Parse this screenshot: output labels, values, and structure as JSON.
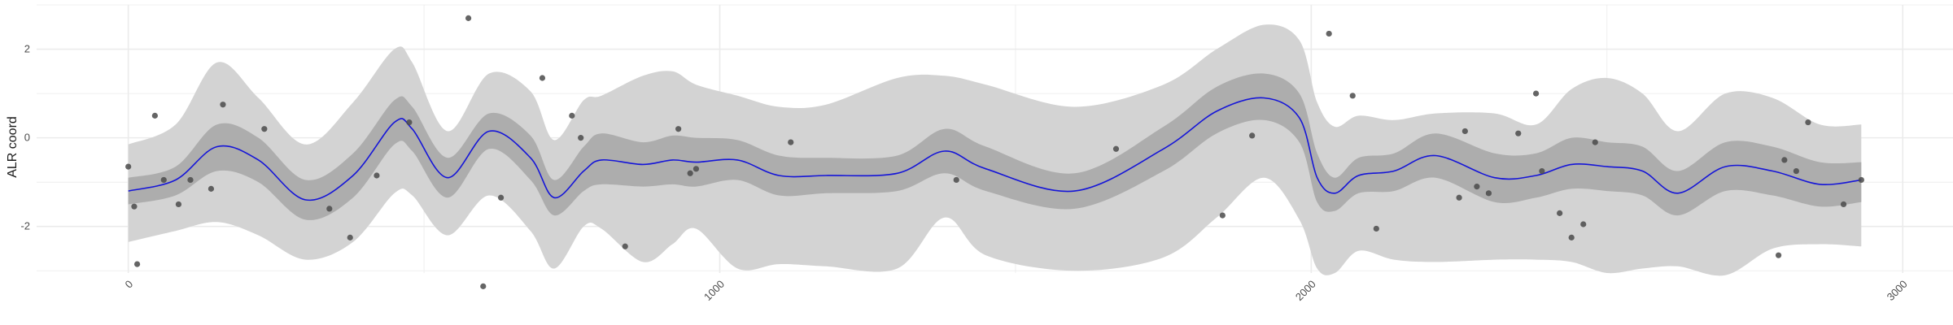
{
  "chart_data": {
    "type": "line",
    "title": "",
    "xlabel": "",
    "ylabel": "ALR coord",
    "xlim": [
      -155,
      3085
    ],
    "ylim": [
      -3.05,
      3.0
    ],
    "x_ticks": [
      {
        "value": 0,
        "label": "0"
      },
      {
        "value": 1000,
        "label": "1000"
      },
      {
        "value": 2000,
        "label": "2000"
      },
      {
        "value": 3000,
        "label": "3000"
      }
    ],
    "x_minor_ticks": [
      500,
      1500,
      2500
    ],
    "y_ticks": [
      {
        "value": 2,
        "label": "2"
      },
      {
        "value": 0,
        "label": "0"
      },
      {
        "value": -2,
        "label": "-2"
      }
    ],
    "y_minor_ticks": [
      3,
      1,
      -1,
      -3
    ],
    "grid": true,
    "colors": {
      "line": "#1515d8",
      "inner_band": "#adadad",
      "outer_band": "#d3d3d3",
      "points": "#4a4a4a",
      "grid": "#ebebeb"
    },
    "series": [
      {
        "role": "mean",
        "x": [
          0,
          80,
          150,
          220,
          300,
          380,
          450,
          480,
          540,
          610,
          680,
          720,
          770,
          800,
          870,
          920,
          960,
          1030,
          1100,
          1180,
          1300,
          1380,
          1450,
          1600,
          1750,
          1840,
          1920,
          1980,
          2010,
          2040,
          2080,
          2140,
          2210,
          2310,
          2380,
          2440,
          2500,
          2560,
          2620,
          2700,
          2780,
          2860,
          2930
        ],
        "y": [
          -1.2,
          -0.95,
          -0.2,
          -0.5,
          -1.4,
          -0.85,
          0.35,
          0.2,
          -0.9,
          0.15,
          -0.45,
          -1.35,
          -0.75,
          -0.5,
          -0.6,
          -0.5,
          -0.55,
          -0.5,
          -0.85,
          -0.85,
          -0.8,
          -0.3,
          -0.7,
          -1.2,
          -0.25,
          0.6,
          0.9,
          0.45,
          -0.9,
          -1.25,
          -0.85,
          -0.75,
          -0.4,
          -0.9,
          -0.85,
          -0.6,
          -0.65,
          -0.75,
          -1.25,
          -0.65,
          -0.75,
          -1.05,
          -0.95
        ]
      },
      {
        "role": "inner_band",
        "x": [
          0,
          80,
          150,
          220,
          300,
          380,
          450,
          480,
          540,
          610,
          680,
          720,
          770,
          800,
          870,
          920,
          960,
          1030,
          1100,
          1180,
          1300,
          1380,
          1450,
          1600,
          1750,
          1840,
          1920,
          1980,
          2010,
          2040,
          2080,
          2140,
          2210,
          2310,
          2380,
          2440,
          2500,
          2560,
          2620,
          2700,
          2780,
          2860,
          2930
        ],
        "upper": [
          -0.9,
          -0.65,
          0.3,
          0.0,
          -0.95,
          -0.35,
          0.85,
          0.7,
          -0.45,
          0.55,
          0.05,
          -0.95,
          -0.2,
          0.1,
          -0.1,
          0.05,
          0.0,
          -0.05,
          -0.4,
          -0.45,
          -0.4,
          0.2,
          -0.2,
          -0.8,
          0.25,
          1.15,
          1.45,
          1.0,
          -0.35,
          -0.9,
          -0.45,
          -0.35,
          0.1,
          -0.35,
          -0.35,
          0.0,
          -0.1,
          -0.2,
          -0.75,
          -0.1,
          -0.2,
          -0.55,
          -0.55
        ],
        "lower": [
          -1.5,
          -1.3,
          -0.75,
          -1.0,
          -1.85,
          -1.35,
          -0.15,
          -0.3,
          -1.35,
          -0.25,
          -0.95,
          -1.75,
          -1.2,
          -1.05,
          -1.1,
          -1.05,
          -1.1,
          -0.95,
          -1.3,
          -1.25,
          -1.2,
          -0.8,
          -1.2,
          -1.6,
          -0.75,
          0.1,
          0.4,
          -0.1,
          -1.45,
          -1.65,
          -1.25,
          -1.2,
          -0.9,
          -1.45,
          -1.35,
          -1.15,
          -1.2,
          -1.3,
          -1.75,
          -1.2,
          -1.3,
          -1.55,
          -1.45
        ]
      },
      {
        "role": "outer_band",
        "x": [
          0,
          80,
          150,
          220,
          300,
          380,
          450,
          480,
          540,
          610,
          680,
          720,
          770,
          800,
          870,
          920,
          960,
          1030,
          1100,
          1180,
          1300,
          1380,
          1450,
          1600,
          1750,
          1840,
          1920,
          1980,
          2010,
          2040,
          2080,
          2140,
          2210,
          2310,
          2380,
          2440,
          2500,
          2560,
          2620,
          2700,
          2780,
          2860,
          2930
        ],
        "upper": [
          -0.15,
          0.3,
          1.7,
          0.9,
          -0.15,
          0.8,
          2.0,
          1.7,
          0.15,
          1.45,
          1.05,
          -0.05,
          0.85,
          0.95,
          1.4,
          1.5,
          1.2,
          0.95,
          0.7,
          0.75,
          1.35,
          1.4,
          1.2,
          0.7,
          1.2,
          2.0,
          2.55,
          2.2,
          0.8,
          0.25,
          0.5,
          0.4,
          0.55,
          0.55,
          0.3,
          1.1,
          1.35,
          1.0,
          0.15,
          1.0,
          0.9,
          0.3,
          0.3
        ],
        "lower": [
          -2.35,
          -2.1,
          -1.9,
          -2.2,
          -2.75,
          -2.35,
          -1.25,
          -1.3,
          -2.2,
          -1.3,
          -2.1,
          -2.95,
          -2.0,
          -2.05,
          -2.8,
          -2.4,
          -2.05,
          -2.95,
          -2.85,
          -2.9,
          -2.95,
          -1.8,
          -2.65,
          -3.0,
          -2.7,
          -1.8,
          -0.9,
          -1.85,
          -2.95,
          -3.05,
          -2.55,
          -2.75,
          -2.8,
          -2.75,
          -2.75,
          -2.8,
          -3.05,
          -2.95,
          -2.9,
          -3.1,
          -2.5,
          -2.4,
          -2.45
        ]
      },
      {
        "role": "observations",
        "points": [
          [
            0,
            -0.65
          ],
          [
            10,
            -1.55
          ],
          [
            15,
            -2.85
          ],
          [
            45,
            0.5
          ],
          [
            60,
            -0.95
          ],
          [
            85,
            -1.5
          ],
          [
            105,
            -0.95
          ],
          [
            140,
            -1.15
          ],
          [
            160,
            0.75
          ],
          [
            230,
            0.2
          ],
          [
            340,
            -1.6
          ],
          [
            375,
            -2.25
          ],
          [
            420,
            -0.85
          ],
          [
            475,
            0.35
          ],
          [
            575,
            2.7
          ],
          [
            600,
            -3.35
          ],
          [
            630,
            -1.35
          ],
          [
            700,
            1.35
          ],
          [
            750,
            0.5
          ],
          [
            765,
            0.0
          ],
          [
            840,
            -2.45
          ],
          [
            930,
            0.2
          ],
          [
            950,
            -0.8
          ],
          [
            960,
            -0.7
          ],
          [
            1120,
            -0.1
          ],
          [
            1400,
            -0.95
          ],
          [
            1670,
            -0.25
          ],
          [
            1850,
            -1.75
          ],
          [
            1900,
            0.05
          ],
          [
            2030,
            2.35
          ],
          [
            2070,
            0.95
          ],
          [
            2110,
            -2.05
          ],
          [
            2250,
            -1.35
          ],
          [
            2260,
            0.15
          ],
          [
            2280,
            -1.1
          ],
          [
            2300,
            -1.25
          ],
          [
            2350,
            0.1
          ],
          [
            2380,
            1.0
          ],
          [
            2390,
            -0.75
          ],
          [
            2420,
            -1.7
          ],
          [
            2440,
            -2.25
          ],
          [
            2460,
            -1.95
          ],
          [
            2480,
            -0.1
          ],
          [
            2790,
            -2.65
          ],
          [
            2800,
            -0.5
          ],
          [
            2820,
            -0.75
          ],
          [
            2840,
            0.35
          ],
          [
            2900,
            -1.5
          ],
          [
            2930,
            -0.95
          ]
        ]
      }
    ]
  }
}
